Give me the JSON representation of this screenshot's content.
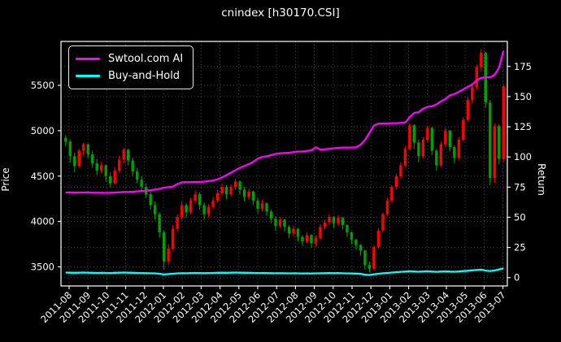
{
  "chart": {
    "title": "cnindex [h30170.CSI]"
  },
  "legend": {
    "entries": [
      {
        "label": "Swtool.com AI",
        "color": "#ff00ff"
      },
      {
        "label": "Buy-and-Hold",
        "color": "#00ffff"
      }
    ]
  },
  "axes": {
    "x": {
      "tick_labels": [
        "2011-08",
        "2011-09",
        "2011-10",
        "2011-11",
        "2011-12",
        "2012-01",
        "2012-02",
        "2012-03",
        "2012-04",
        "2012-05",
        "2012-06",
        "2012-07",
        "2012-08",
        "2012-09",
        "2012-10",
        "2012-11",
        "2012-12",
        "2013-01",
        "2013-02",
        "2013-03",
        "2013-04",
        "2013-05",
        "2013-06",
        "2013-07"
      ],
      "rotation": 45
    },
    "price": {
      "label": "Price",
      "ticks": [
        3500,
        4000,
        4500,
        5000,
        5500
      ],
      "min": 3290,
      "max": 5983
    },
    "return": {
      "label": "Return",
      "ticks": [
        0,
        25,
        50,
        75,
        100,
        125,
        150,
        175
      ],
      "min": -6.9,
      "max": 195.7
    }
  },
  "chart_data": {
    "type": "candlestick+line",
    "title": "cnindex [h30170.CSI]",
    "x_months": [
      "2011-08",
      "2011-09",
      "2011-10",
      "2011-11",
      "2011-12",
      "2012-01",
      "2012-02",
      "2012-03",
      "2012-04",
      "2012-05",
      "2012-06",
      "2012-07",
      "2012-08",
      "2012-09",
      "2012-10",
      "2012-11",
      "2012-12",
      "2013-01",
      "2013-02",
      "2013-03",
      "2013-04",
      "2013-05",
      "2013-06",
      "2013-07"
    ],
    "price_axis": {
      "label": "Price",
      "ticks": [
        3500,
        4000,
        4500,
        5000,
        5500
      ]
    },
    "return_axis": {
      "label": "Return",
      "ticks": [
        0,
        25,
        50,
        75,
        100,
        125,
        150,
        175
      ]
    },
    "grid": "dotted",
    "legend_position": "upper-left",
    "candles_ohlc": [
      [
        4920,
        4950,
        4830,
        4880
      ],
      [
        4880,
        4900,
        4650,
        4720
      ],
      [
        4720,
        4760,
        4540,
        4610
      ],
      [
        4610,
        4800,
        4590,
        4780
      ],
      [
        4780,
        4870,
        4730,
        4850
      ],
      [
        4850,
        4860,
        4700,
        4740
      ],
      [
        4740,
        4780,
        4590,
        4640
      ],
      [
        4640,
        4690,
        4510,
        4560
      ],
      [
        4560,
        4660,
        4530,
        4620
      ],
      [
        4620,
        4630,
        4440,
        4500
      ],
      [
        4500,
        4540,
        4370,
        4420
      ],
      [
        4420,
        4600,
        4410,
        4560
      ],
      [
        4560,
        4720,
        4540,
        4680
      ],
      [
        4680,
        4810,
        4640,
        4790
      ],
      [
        4790,
        4800,
        4620,
        4670
      ],
      [
        4670,
        4700,
        4500,
        4550
      ],
      [
        4550,
        4590,
        4420,
        4460
      ],
      [
        4460,
        4500,
        4340,
        4380
      ],
      [
        4380,
        4420,
        4260,
        4300
      ],
      [
        4300,
        4330,
        4130,
        4180
      ],
      [
        4180,
        4220,
        4020,
        4080
      ],
      [
        4080,
        4100,
        3820,
        3880
      ],
      [
        3880,
        3900,
        3470,
        3560
      ],
      [
        3560,
        3750,
        3520,
        3700
      ],
      [
        3700,
        3960,
        3680,
        3920
      ],
      [
        3920,
        4080,
        3890,
        4050
      ],
      [
        4050,
        4220,
        4020,
        4180
      ],
      [
        4180,
        4200,
        4040,
        4100
      ],
      [
        4100,
        4260,
        4080,
        4230
      ],
      [
        4230,
        4340,
        4200,
        4300
      ],
      [
        4300,
        4320,
        4130,
        4180
      ],
      [
        4180,
        4210,
        4020,
        4080
      ],
      [
        4080,
        4190,
        4050,
        4160
      ],
      [
        4160,
        4270,
        4140,
        4230
      ],
      [
        4230,
        4350,
        4210,
        4310
      ],
      [
        4310,
        4420,
        4280,
        4380
      ],
      [
        4380,
        4400,
        4250,
        4300
      ],
      [
        4300,
        4410,
        4280,
        4380
      ],
      [
        4380,
        4470,
        4350,
        4440
      ],
      [
        4440,
        4450,
        4300,
        4350
      ],
      [
        4350,
        4380,
        4220,
        4270
      ],
      [
        4270,
        4360,
        4240,
        4330
      ],
      [
        4330,
        4340,
        4180,
        4230
      ],
      [
        4230,
        4260,
        4090,
        4140
      ],
      [
        4140,
        4240,
        4110,
        4200
      ],
      [
        4200,
        4210,
        4060,
        4110
      ],
      [
        4110,
        4130,
        3980,
        4030
      ],
      [
        4030,
        4060,
        3900,
        3950
      ],
      [
        3950,
        4050,
        3930,
        4020
      ],
      [
        4020,
        4030,
        3890,
        3940
      ],
      [
        3940,
        3960,
        3820,
        3870
      ],
      [
        3870,
        3950,
        3840,
        3920
      ],
      [
        3920,
        3930,
        3780,
        3830
      ],
      [
        3830,
        3850,
        3730,
        3780
      ],
      [
        3780,
        3880,
        3760,
        3850
      ],
      [
        3850,
        3860,
        3710,
        3760
      ],
      [
        3760,
        3850,
        3730,
        3820
      ],
      [
        3820,
        3970,
        3800,
        3940
      ],
      [
        3940,
        4020,
        3910,
        3990
      ],
      [
        3990,
        4080,
        3960,
        4050
      ],
      [
        4050,
        4060,
        3930,
        3980
      ],
      [
        3980,
        4070,
        3950,
        4040
      ],
      [
        4040,
        4050,
        3910,
        3960
      ],
      [
        3960,
        3970,
        3830,
        3880
      ],
      [
        3880,
        3890,
        3750,
        3800
      ],
      [
        3800,
        3810,
        3690,
        3740
      ],
      [
        3740,
        3750,
        3620,
        3680
      ],
      [
        3680,
        3690,
        3470,
        3520
      ],
      [
        3520,
        3560,
        3440,
        3480
      ],
      [
        3480,
        3740,
        3460,
        3720
      ],
      [
        3720,
        3930,
        3700,
        3900
      ],
      [
        3900,
        4100,
        3880,
        4080
      ],
      [
        4080,
        4260,
        4060,
        4230
      ],
      [
        4230,
        4400,
        4200,
        4380
      ],
      [
        4380,
        4530,
        4350,
        4500
      ],
      [
        4500,
        4650,
        4470,
        4620
      ],
      [
        4620,
        4830,
        4600,
        4800
      ],
      [
        4800,
        5080,
        4780,
        5060
      ],
      [
        5060,
        5070,
        4800,
        4870
      ],
      [
        4870,
        4900,
        4650,
        4720
      ],
      [
        4720,
        4930,
        4700,
        4900
      ],
      [
        4900,
        5060,
        4870,
        5030
      ],
      [
        5030,
        5040,
        4730,
        4780
      ],
      [
        4780,
        4800,
        4560,
        4620
      ],
      [
        4620,
        4880,
        4600,
        4850
      ],
      [
        4850,
        5030,
        4820,
        5000
      ],
      [
        5000,
        5010,
        4770,
        4820
      ],
      [
        4820,
        4840,
        4640,
        4700
      ],
      [
        4700,
        4930,
        4680,
        4900
      ],
      [
        4900,
        5150,
        4880,
        5120
      ],
      [
        5120,
        5370,
        5100,
        5340
      ],
      [
        5340,
        5520,
        5300,
        5480
      ],
      [
        5480,
        5730,
        5450,
        5700
      ],
      [
        5700,
        5900,
        5650,
        5860
      ],
      [
        5860,
        5870,
        5250,
        5310
      ],
      [
        5310,
        5340,
        4400,
        4480
      ],
      [
        4480,
        5080,
        4420,
        5050
      ],
      [
        5050,
        5070,
        4630,
        4690
      ],
      [
        4690,
        5500,
        4660,
        5490
      ]
    ],
    "series": [
      {
        "name": "Swtool.com AI",
        "axis": "return",
        "color": "#ff00ff",
        "values": [
          70.5,
          70.5,
          70.4,
          70.5,
          70.5,
          70.6,
          70.4,
          70.3,
          70.3,
          70.2,
          70.3,
          70.5,
          70.7,
          71.0,
          71.0,
          71.2,
          71.5,
          71.8,
          72.0,
          72.4,
          73.0,
          73.5,
          74.5,
          75.0,
          75.5,
          77.5,
          79.0,
          79.2,
          79.2,
          79.3,
          79.3,
          79.5,
          80.0,
          80.5,
          81.5,
          83.0,
          85.0,
          87.0,
          89.0,
          91.0,
          92.5,
          94.0,
          96.0,
          98.5,
          100.0,
          100.5,
          101.5,
          102.5,
          103.0,
          103.2,
          103.5,
          104.0,
          104.5,
          104.5,
          105.0,
          105.5,
          108.0,
          106.0,
          106.3,
          106.8,
          107.2,
          107.5,
          107.8,
          107.8,
          107.8,
          108.0,
          110.0,
          114.0,
          120.0,
          126.0,
          127.5,
          127.8,
          127.8,
          128.0,
          128.0,
          128.2,
          128.5,
          133.0,
          136.5,
          137.0,
          140.0,
          141.5,
          142.0,
          143.5,
          146.0,
          148.0,
          151.0,
          152.0,
          154.0,
          156.0,
          158.0,
          160.0,
          163.5,
          165.5,
          166.0,
          166.0,
          168.0,
          174.0,
          188.0
        ]
      },
      {
        "name": "Buy-and-Hold",
        "axis": "return",
        "color": "#00ffff",
        "values": [
          4.2,
          4.1,
          4.0,
          4.1,
          4.2,
          4.1,
          4.0,
          3.9,
          4.0,
          3.9,
          3.8,
          4.0,
          4.1,
          4.2,
          4.1,
          4.0,
          3.9,
          3.8,
          3.7,
          3.6,
          3.5,
          3.2,
          2.6,
          2.9,
          3.2,
          3.5,
          3.7,
          3.6,
          3.8,
          3.9,
          3.8,
          3.7,
          3.8,
          3.9,
          4.0,
          4.1,
          4.0,
          4.1,
          4.2,
          4.1,
          4.0,
          4.0,
          3.9,
          3.8,
          3.9,
          3.8,
          3.7,
          3.6,
          3.7,
          3.6,
          3.5,
          3.6,
          3.5,
          3.4,
          3.5,
          3.4,
          3.5,
          3.6,
          3.7,
          3.8,
          3.7,
          3.8,
          3.6,
          3.5,
          3.4,
          3.3,
          3.2,
          2.4,
          2.2,
          2.8,
          3.2,
          3.6,
          3.9,
          4.2,
          4.5,
          4.8,
          5.0,
          5.3,
          5.1,
          4.9,
          5.1,
          5.3,
          5.0,
          4.8,
          5.0,
          5.2,
          5.0,
          4.9,
          5.1,
          5.4,
          5.7,
          6.0,
          6.3,
          6.6,
          5.8,
          5.5,
          5.9,
          6.8,
          7.8
        ]
      }
    ],
    "colors": {
      "up": "#ff0000",
      "down": "#00a000",
      "grid": "#5a5a5a",
      "frame": "#ffffff",
      "background": "#000000",
      "text": "#ffffff"
    }
  }
}
